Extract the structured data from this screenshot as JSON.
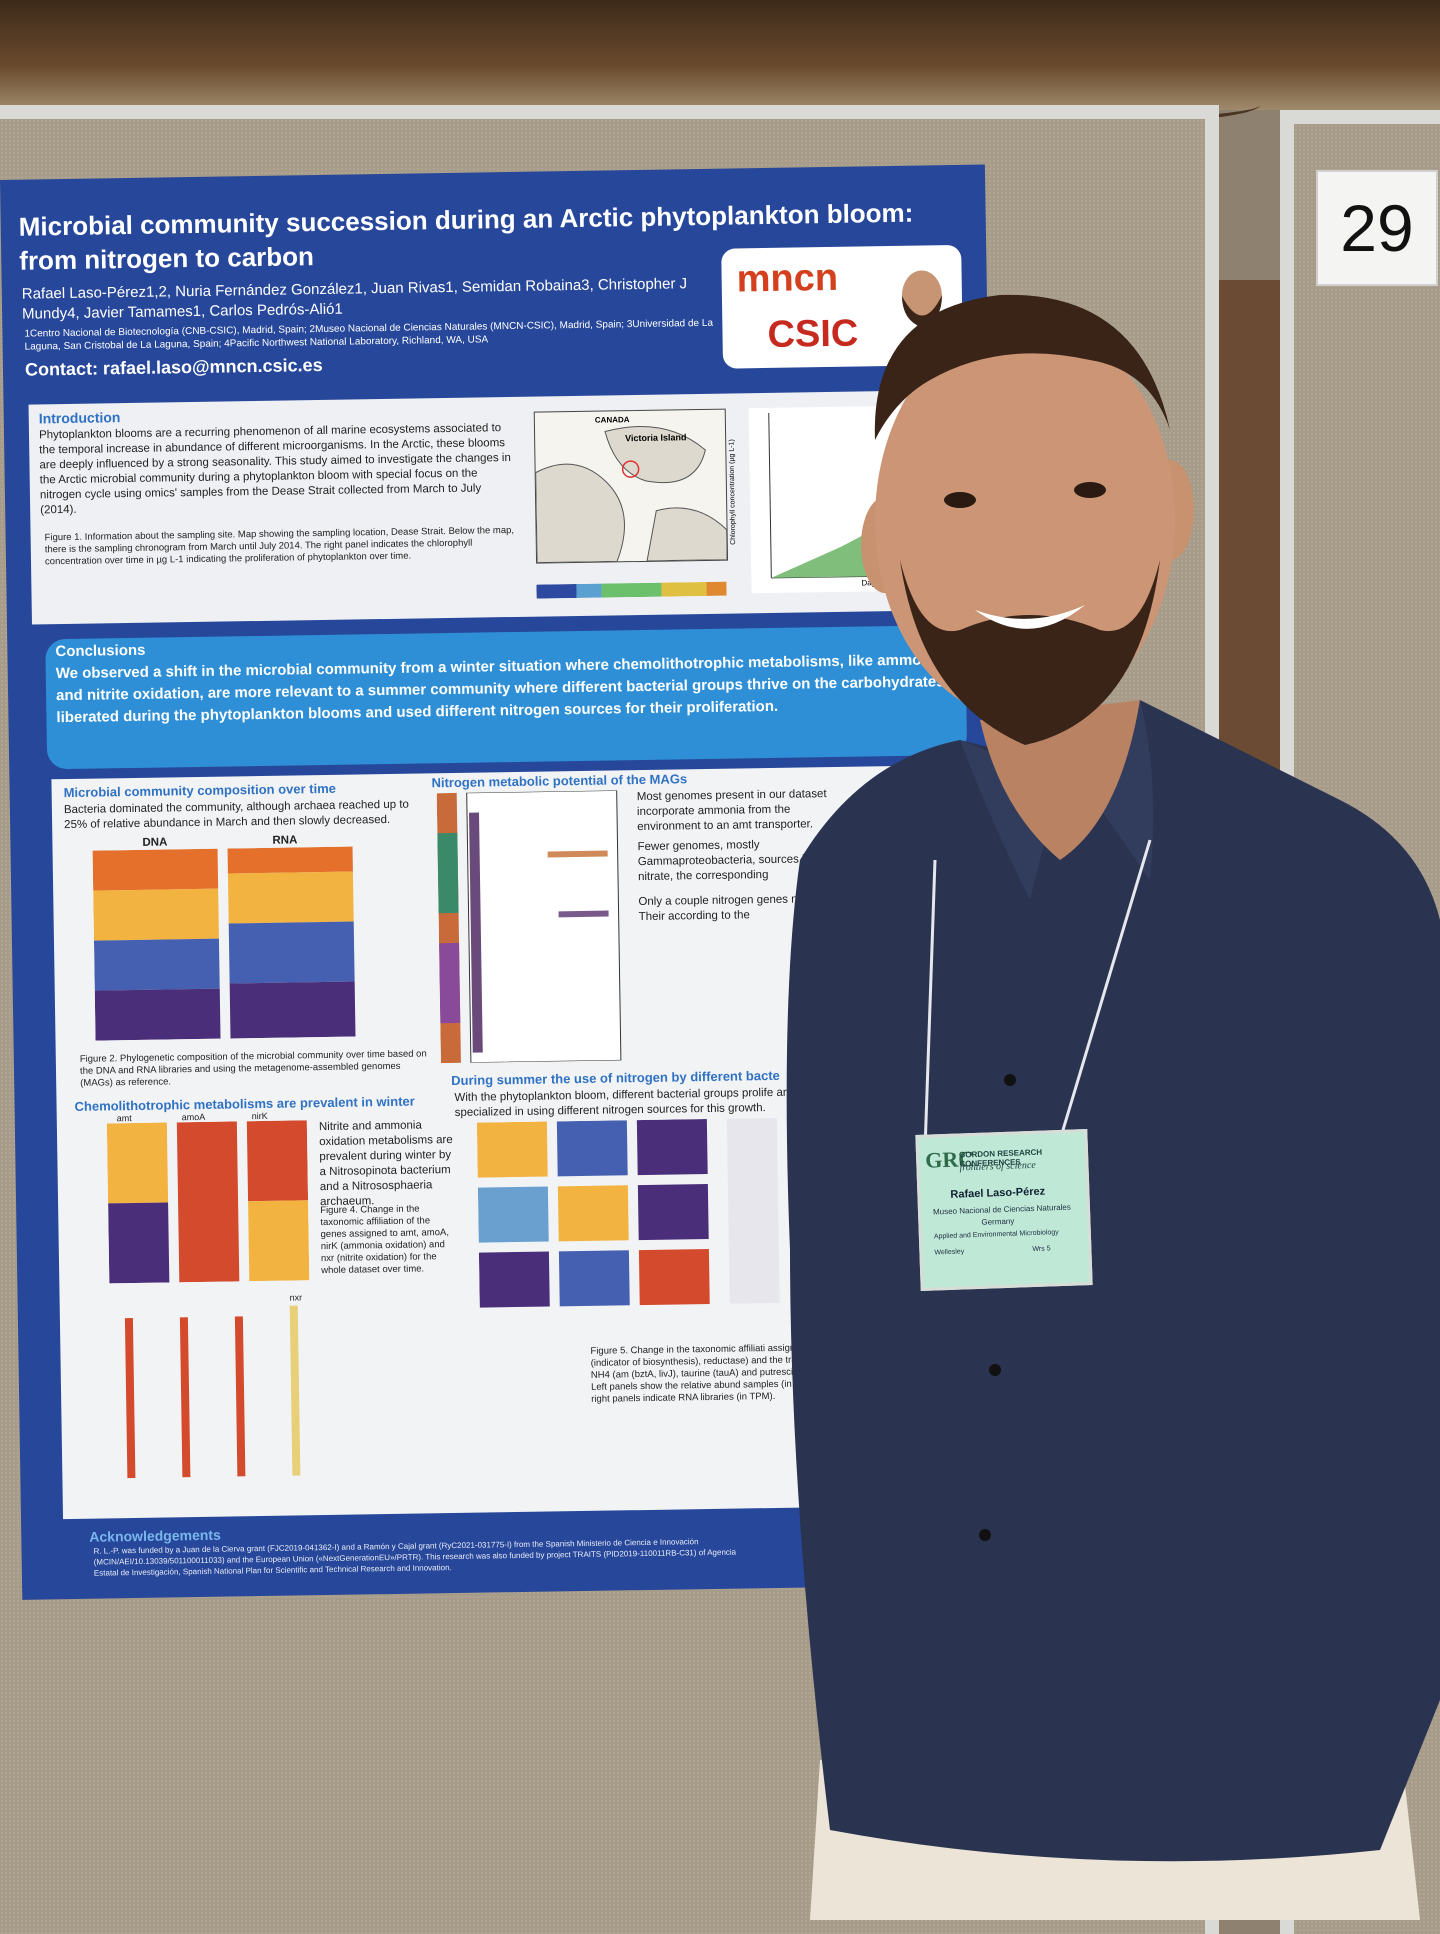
{
  "board": {
    "number": "29"
  },
  "poster": {
    "title": "Microbial community succession during an Arctic phytoplankton bloom: from nitrogen to carbon",
    "authors": "Rafael Laso-Pérez1,2, Nuria Fernández González1, Juan Rivas1, Semidan Robaina3, Christopher J Mundy4, Javier Tamames1, Carlos Pedrós-Alió1",
    "affiliations": "1Centro Nacional de Biotecnología (CNB-CSIC), Madrid, Spain; 2Museo Nacional de Ciencias Naturales (MNCN-CSIC), Madrid, Spain; 3Universidad de La Laguna, San Cristobal de La Laguna, Spain; 4Pacific Northwest National Laboratory, Richland, WA, USA",
    "contact": "Contact: rafael.laso@mncn.csic.es",
    "logo_mncn": "mncn",
    "logo_csic": "CSIC",
    "introduction": {
      "heading": "Introduction",
      "text": "Phytoplankton blooms are a recurring phenomenon of all marine ecosystems associated to the temporal increase in abundance of different microorganisms. In the Arctic, these blooms are deeply influenced by a strong seasonality. This study aimed to investigate the changes in the Arctic microbial community during a phytoplankton bloom with special focus on the nitrogen cycle using omics' samples from the Dease Strait collected from March to July (2014).",
      "figure_caption": "Figure 1. Information about the sampling site. Map showing the sampling location, Dease Strait. Below the map, there is the sampling chronogram from March until July 2014. The right panel indicates the chlorophyll concentration over time in µg L-1 indicating the proliferation of phytoplankton over time.",
      "map_label_canada": "CANADA",
      "map_label_island": "Victoria Island",
      "chart_xlabel": "Days",
      "chart_ylabel": "Chlorophyll concentration (µg L-1)"
    },
    "conclusions": {
      "heading": "Conclusions",
      "text": "We observed a shift in the microbial community from a winter situation where chemolithotrophic metabolisms, like ammonia and nitrite oxidation, are more relevant to a summer community where different bacterial groups thrive on the carbohydrates liberated during the phytoplankton blooms and used different nitrogen sources for their proliferation."
    },
    "section_composition": {
      "heading": "Microbial community composition over time",
      "text": "Bacteria dominated the community, although archaea reached up to 25% of relative abundance in March and then slowly decreased.",
      "label_dna": "DNA",
      "label_rna": "RNA",
      "caption": "Figure 2. Phylogenetic composition of the microbial community over time based on the DNA and RNA libraries and using the metagenome-assembled genomes (MAGs) as reference."
    },
    "section_nitrogen": {
      "heading": "Nitrogen metabolic potential of the MAGs",
      "text1": "Most genomes present in our dataset incorporate ammonia from the environment to an amt transporter.",
      "text2": "Fewer genomes, mostly Gammaproteobacteria, sources like nitrate, the corresponding",
      "text3": "Only a couple nitrogen genes narG). Their according to the"
    },
    "section_chemo": {
      "heading": "Chemolithotrophic metabolisms are prevalent in winter",
      "text": "Nitrite and ammonia oxidation metabolisms are prevalent during winter by a Nitrosopinota bacterium and a Nitrososphaeria archaeum.",
      "caption": "Figure 4. Change in the taxonomic affiliation of the genes assigned to amt, amoA, nirK (ammonia oxidation) and nxr (nitrite oxidation) for the whole dataset over time.",
      "gene_labels": [
        "amt",
        "amoA",
        "nirK",
        "nxr"
      ]
    },
    "section_summer": {
      "heading": "During summer the use of nitrogen by different bacte",
      "text": "With the phytoplankton bloom, different bacterial groups prolife are specialized in using different nitrogen sources for this growth.",
      "caption": "Figure 5. Change in the taxonomic affiliati assigned to ilvC (indicator of biosynthesis), reductase) and the transporters for NH4 (am (bztA, livJ), taurine (tauA) and putrescine (pot time. Left panels show the relative abund samples (in TPM), while right panels indicate RNA libraries (in TPM)."
    },
    "acknowledgements": {
      "heading": "Acknowledgements",
      "text": "R. L.-P. was funded by a Juan de la Cierva grant (FJC2019-041362-I) and a Ramón y Cajal grant (RyC2021-031775-I) from the Spanish Ministerio de Ciencia e Innovación (MCIN/AEI/10.13039/501100011033) and the European Union («NextGenerationEU»/PRTR). This research was also funded by project TRAITS (PID2019-110011RB-C31) of Agencia Estatal de Investigación, Spanish National Plan for Scientific and Technical Research and Innovation."
    }
  },
  "badge": {
    "conference": "GORDON RESEARCH CONFERENCES",
    "tagline": "frontiers of science",
    "name": "Rafael Laso-Pérez",
    "institution": "Museo Nacional de Ciencias Naturales",
    "country": "Germany",
    "meeting": "Applied and Environmental Microbiology",
    "place": "Wellesley",
    "room": "Wrs 5"
  },
  "colors": {
    "poster_blue": "#27479a",
    "conclusion_blue": "#2e8fd6",
    "shirt_navy": "#2a3350",
    "badge_green": "#bfe8d6"
  }
}
